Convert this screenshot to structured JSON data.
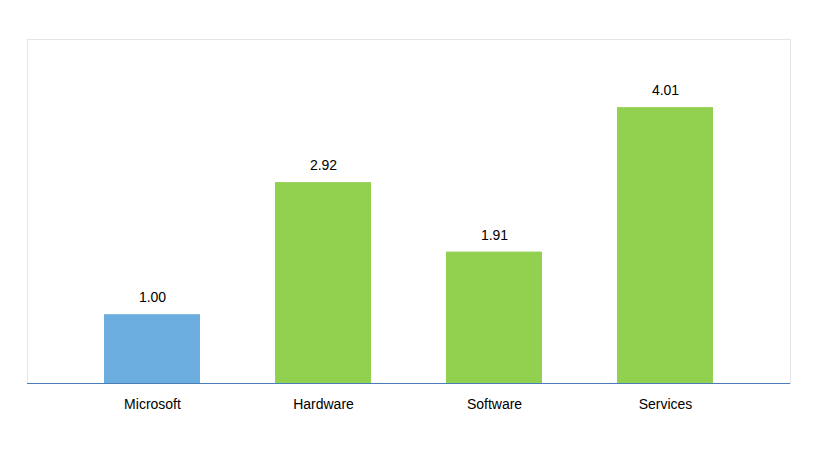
{
  "chart_data": {
    "type": "bar",
    "categories": [
      "Microsoft",
      "Hardware",
      "Software",
      "Services"
    ],
    "values": [
      1.0,
      2.92,
      1.91,
      4.01
    ],
    "value_labels": [
      "1.00",
      "2.92",
      "1.91",
      "4.01"
    ],
    "colors": [
      "#6cade0",
      "#92d050",
      "#92d050",
      "#92d050"
    ],
    "ylim": [
      0,
      5
    ],
    "grid": false,
    "data_labels": true,
    "tick_labels": "x"
  }
}
